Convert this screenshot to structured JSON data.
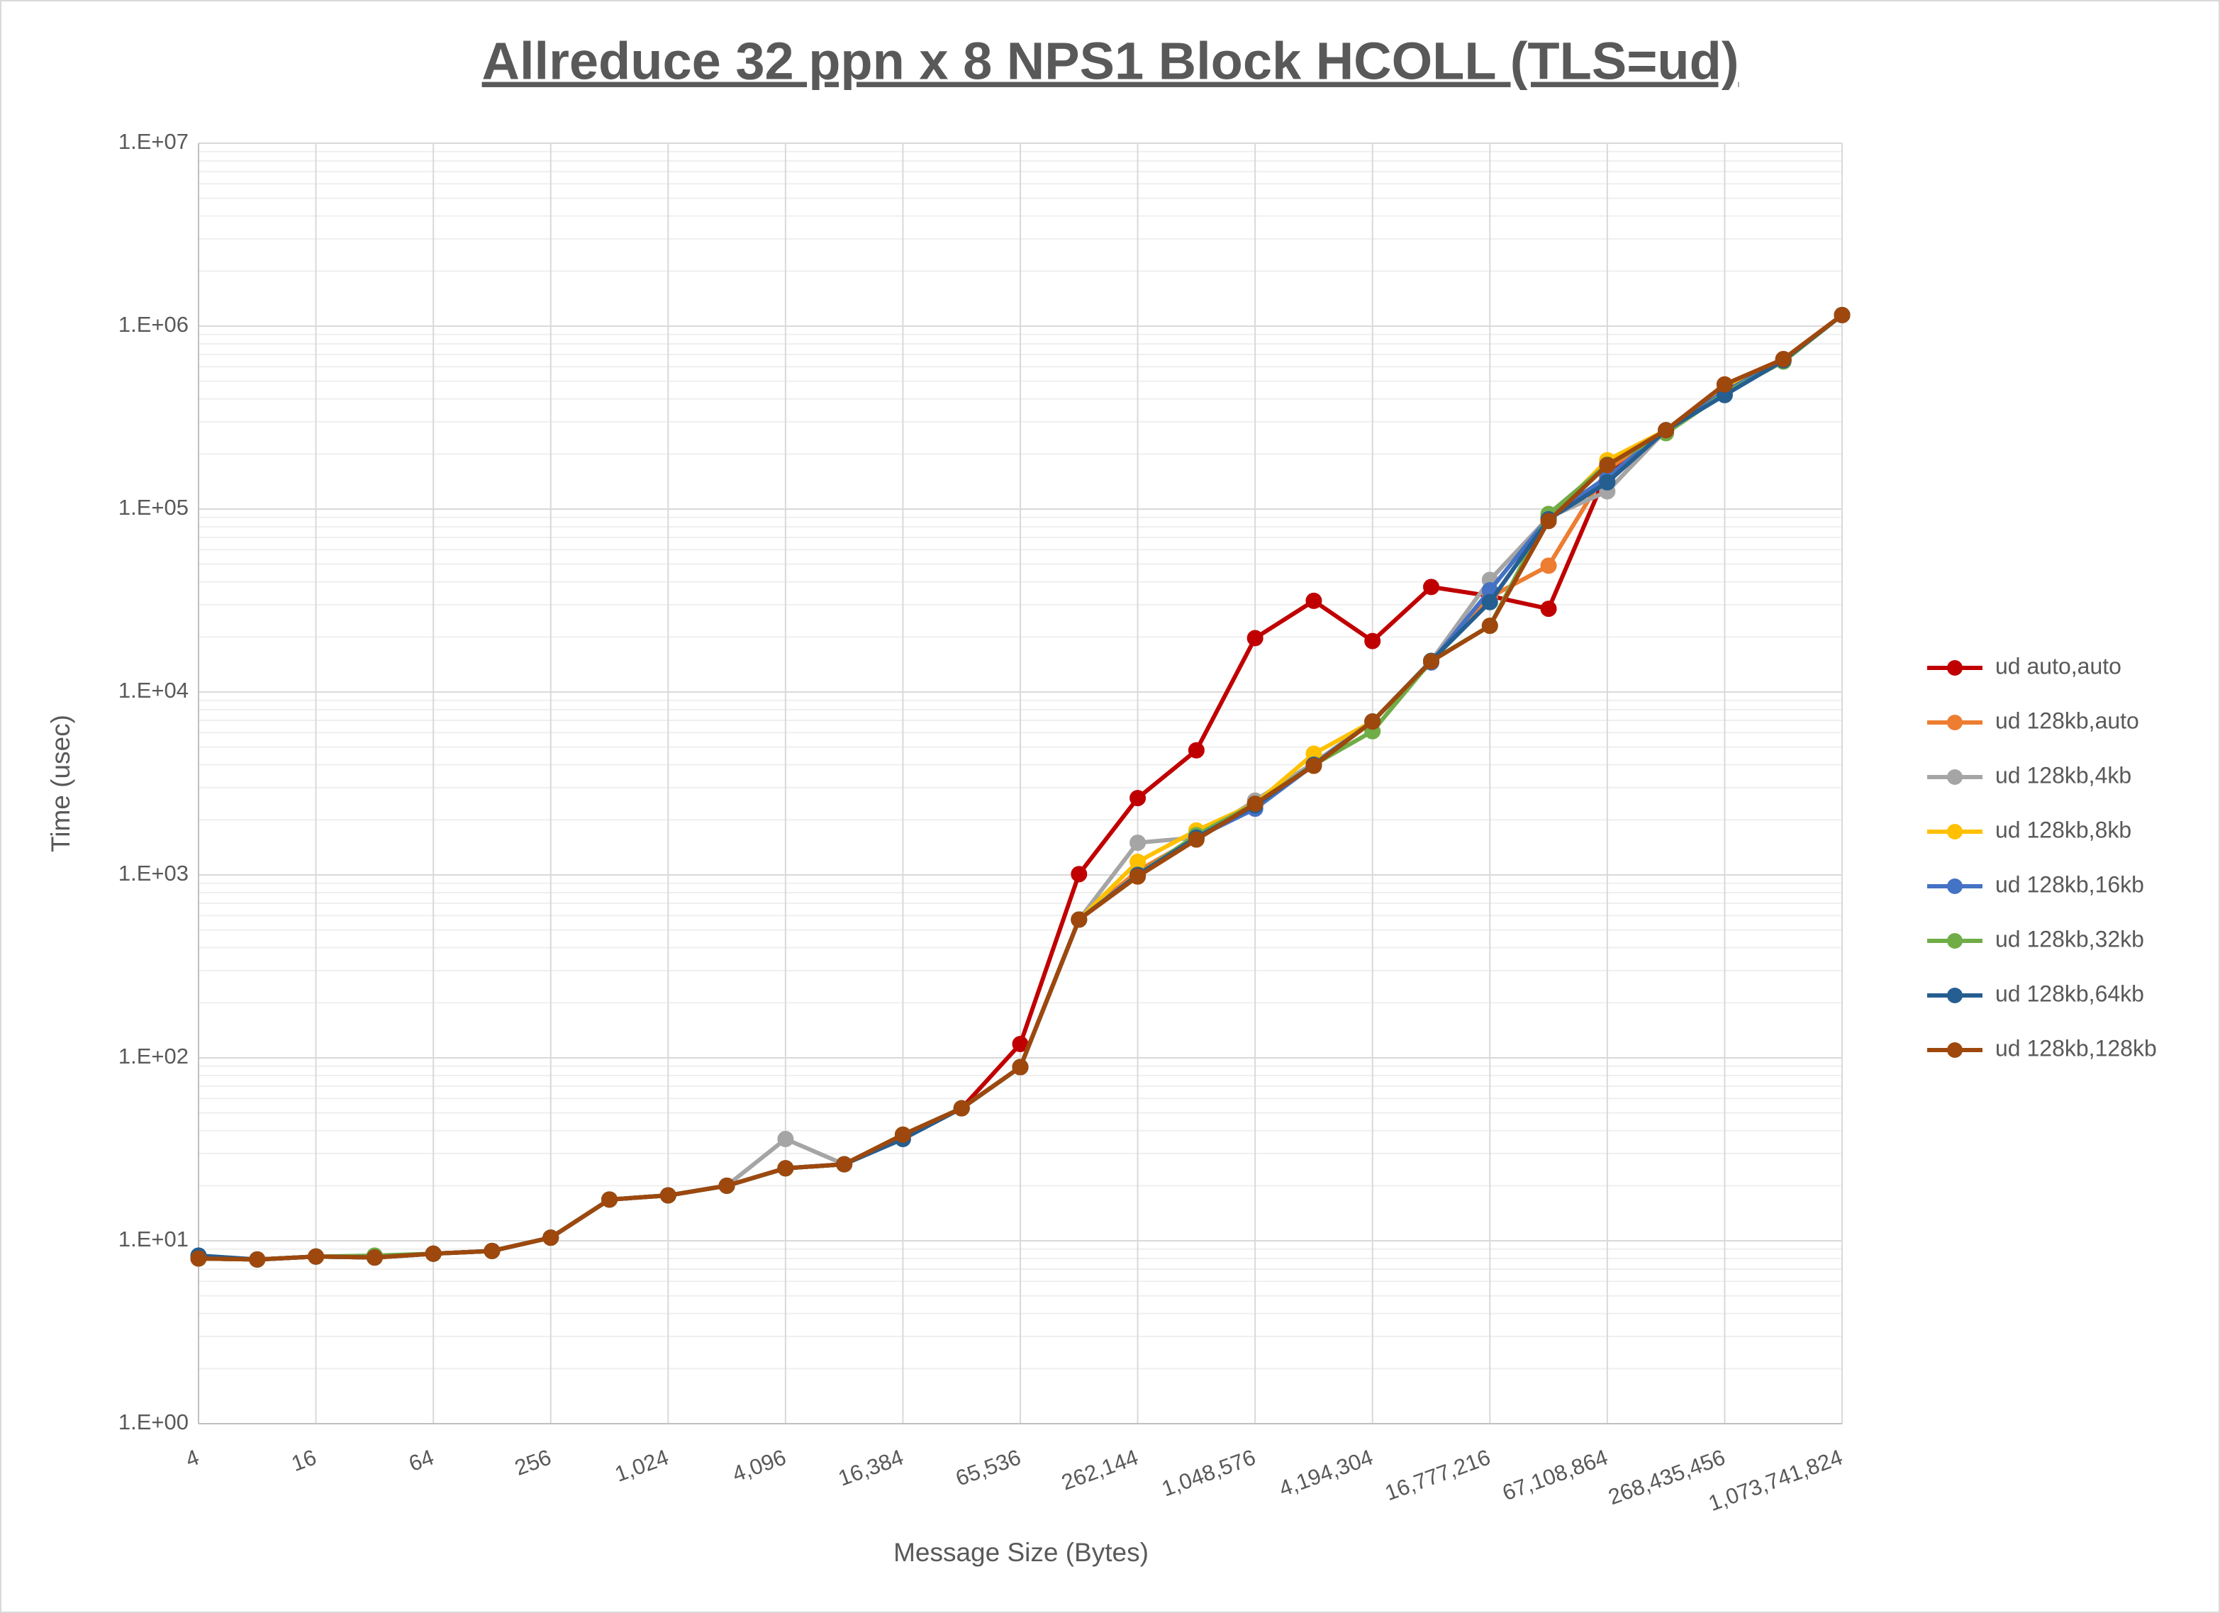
{
  "chart_data": {
    "type": "line",
    "title": "Allreduce 32 ppn x 8 NPS1 Block HCOLL (TLS=ud)",
    "x_label": "Message Size (Bytes)",
    "y_label": "Time (usec)",
    "x_scale": "log",
    "y_scale": "log",
    "grid": true,
    "legend": "right",
    "x": [
      4,
      8,
      16,
      32,
      64,
      128,
      256,
      512,
      1024,
      2048,
      4096,
      8192,
      16384,
      32768,
      65536,
      131072,
      262144,
      524288,
      1048576,
      2097152,
      4194304,
      8388608,
      16777216,
      33554432,
      67108864,
      134217728,
      268435456,
      536870912,
      1073741824
    ],
    "xlim": [
      4,
      1073741824
    ],
    "xticks": [
      4,
      16,
      64,
      256,
      {
        "value": 1024,
        "label": "1,024"
      },
      {
        "value": 4096,
        "label": "4,096"
      },
      {
        "value": 16384,
        "label": "16,384"
      },
      {
        "value": 65536,
        "label": "65,536"
      },
      {
        "value": 262144,
        "label": "262,144"
      },
      {
        "value": 1048576,
        "label": "1,048,576"
      },
      {
        "value": 4194304,
        "label": "4,194,304"
      },
      {
        "value": 16777216,
        "label": "16,777,216"
      },
      {
        "value": 67108864,
        "label": "67,108,864"
      },
      {
        "value": 268435456,
        "label": "268,435,456"
      },
      {
        "value": 1073741824,
        "label": "1,073,741,824"
      }
    ],
    "ylim": [
      1,
      10000000
    ],
    "yticks": [
      {
        "value": 1,
        "label": "1.E+00"
      },
      {
        "value": 10,
        "label": "1.E+01"
      },
      {
        "value": 100,
        "label": "1.E+02"
      },
      {
        "value": 1000,
        "label": "1.E+03"
      },
      {
        "value": 10000,
        "label": "1.E+04"
      },
      {
        "value": 100000,
        "label": "1.E+05"
      },
      {
        "value": 1000000,
        "label": "1.E+06"
      },
      {
        "value": 10000000,
        "label": "1.E+07"
      }
    ],
    "series": [
      {
        "name": "ud auto,auto",
        "color": "#c00000",
        "values": [
          8.0,
          7.9,
          8.2,
          8.1,
          8.5,
          8.8,
          10.4,
          16.8,
          17.7,
          20,
          24.9,
          26.2,
          38,
          53,
          119,
          1010,
          2630,
          4800,
          19700,
          31500,
          19000,
          37500,
          33500,
          28500,
          160000,
          270000,
          480000,
          660000,
          1150000
        ]
      },
      {
        "name": "ud 128kb,auto",
        "color": "#ed7d31",
        "values": [
          8.0,
          7.9,
          8.2,
          8.1,
          8.5,
          8.8,
          10.4,
          16.8,
          17.7,
          20,
          24.9,
          26.2,
          38,
          53,
          89,
          570,
          1050,
          1600,
          2450,
          4000,
          6900,
          14800,
          33000,
          49000,
          165000,
          270000,
          480000,
          660000,
          1150000
        ]
      },
      {
        "name": "ud 128kb,4kb",
        "color": "#a5a5a5",
        "values": [
          8.0,
          7.9,
          8.2,
          8.1,
          8.5,
          8.8,
          10.4,
          16.8,
          17.7,
          20,
          36,
          26.2,
          38,
          53,
          89,
          570,
          1500,
          1600,
          2550,
          4100,
          6900,
          14800,
          41000,
          90000,
          125000,
          270000,
          470000,
          650000,
          1150000
        ]
      },
      {
        "name": "ud 128kb,8kb",
        "color": "#ffc000",
        "values": [
          8.0,
          7.9,
          8.2,
          8.1,
          8.5,
          8.8,
          10.4,
          16.8,
          17.7,
          20,
          24.9,
          26.2,
          38,
          53,
          89,
          570,
          1180,
          1750,
          2450,
          4600,
          6900,
          14800,
          23000,
          88000,
          185000,
          270000,
          470000,
          650000,
          1150000
        ]
      },
      {
        "name": "ud 128kb,16kb",
        "color": "#4472c4",
        "values": [
          8.0,
          7.9,
          8.2,
          8.1,
          8.5,
          8.8,
          10.4,
          16.8,
          17.7,
          20,
          24.9,
          26.2,
          38,
          53,
          89,
          570,
          1000,
          1600,
          2300,
          4000,
          6900,
          14500,
          36000,
          90000,
          150000,
          270000,
          440000,
          650000,
          1150000
        ]
      },
      {
        "name": "ud 128kb,32kb",
        "color": "#70ad47",
        "values": [
          8.0,
          7.9,
          8.2,
          8.3,
          8.5,
          8.8,
          10.4,
          16.8,
          17.7,
          20,
          24.9,
          26.2,
          38,
          53,
          89,
          570,
          1000,
          1650,
          2450,
          4000,
          6100,
          14800,
          23000,
          94000,
          175000,
          260000,
          430000,
          640000,
          1150000
        ]
      },
      {
        "name": "ud 128kb,64kb",
        "color": "#255e91",
        "values": [
          8.3,
          7.9,
          8.2,
          8.1,
          8.5,
          8.8,
          10.4,
          16.8,
          17.7,
          20,
          24.9,
          26.2,
          36,
          53,
          89,
          570,
          1000,
          1600,
          2400,
          4000,
          6900,
          14800,
          31000,
          88000,
          140000,
          270000,
          420000,
          650000,
          1150000
        ]
      },
      {
        "name": "ud 128kb,128kb",
        "color": "#9e480e",
        "values": [
          8.0,
          7.9,
          8.2,
          8.1,
          8.5,
          8.8,
          10.4,
          16.8,
          17.7,
          20,
          24.9,
          26.2,
          38,
          53,
          89,
          570,
          980,
          1560,
          2450,
          3950,
          6900,
          14700,
          23000,
          86000,
          174000,
          270000,
          480000,
          660000,
          1150000
        ]
      }
    ]
  }
}
